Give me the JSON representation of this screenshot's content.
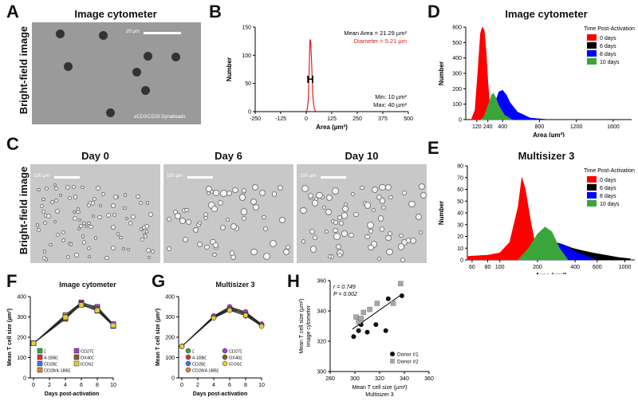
{
  "panels": {
    "a": "A",
    "b": "B",
    "c": "C",
    "d": "D",
    "e": "E",
    "f": "F",
    "g": "G",
    "h": "H"
  },
  "panel_a": {
    "title": "Image cytometer",
    "side_label": "Bright-field image",
    "scale": "20 µm",
    "caption": "αCD3/CD28 Dynabeads"
  },
  "panel_c": {
    "side_label": "Bright-field image",
    "days": [
      "Day 0",
      "Day 6",
      "Day 10"
    ],
    "scale": "100 µm"
  },
  "colors": {
    "red": "#ff0000",
    "black": "#000000",
    "blue": "#0000ff",
    "green": "#3aa63a"
  },
  "chart_data": [
    {
      "id": "B",
      "type": "line",
      "xlabel": "Area (µm²)",
      "ylabel": "Number",
      "xlim": [
        -250,
        500
      ],
      "ylim": [
        0,
        150
      ],
      "xticks": [
        -250,
        -125,
        0,
        125,
        250,
        375,
        500
      ],
      "yticks": [
        0,
        50,
        100,
        150
      ],
      "x": [
        0,
        5,
        10,
        13,
        16,
        18,
        20,
        22,
        24,
        26,
        28,
        30,
        32,
        35,
        38,
        42,
        46,
        50
      ],
      "y": [
        0,
        4,
        20,
        55,
        100,
        125,
        128,
        122,
        105,
        90,
        70,
        50,
        30,
        18,
        8,
        3,
        1,
        0
      ],
      "annotations": {
        "mean_area": "Mean Area = 21.29 µm²",
        "diameter": "Diameter = 5.21 µm",
        "min": "Min: 10 µm²",
        "max": "Max: 40 µm²",
        "marker": "H"
      }
    },
    {
      "id": "D",
      "type": "area",
      "title": "Image cytometer",
      "xlabel": "Area (µm²)",
      "ylabel": "Number",
      "xlim": [
        0,
        1800
      ],
      "ylim": [
        0,
        600
      ],
      "xticks": [
        120,
        240,
        400,
        800,
        1200,
        1600
      ],
      "yticks": [
        0,
        100,
        200,
        300,
        400,
        500,
        600
      ],
      "legend_title": "Time Post-Activation",
      "series": [
        {
          "name": "0 days",
          "color": "#ff0000",
          "x": [
            60,
            100,
            130,
            160,
            180,
            200,
            220,
            240,
            260,
            280
          ],
          "y": [
            0,
            60,
            300,
            560,
            600,
            580,
            450,
            250,
            90,
            10
          ]
        },
        {
          "name": "6 days",
          "color": "#000000",
          "x": [
            150,
            220,
            280,
            340,
            380,
            420,
            480,
            560,
            700,
            900
          ],
          "y": [
            0,
            10,
            60,
            110,
            140,
            120,
            80,
            40,
            10,
            0
          ]
        },
        {
          "name": "8 days",
          "color": "#0000ff",
          "x": [
            220,
            280,
            320,
            360,
            400,
            440,
            480,
            560,
            700,
            850
          ],
          "y": [
            0,
            40,
            110,
            180,
            190,
            160,
            110,
            50,
            10,
            0
          ]
        },
        {
          "name": "10 days",
          "color": "#3aa63a",
          "x": [
            160,
            200,
            240,
            280,
            300,
            320,
            360,
            420,
            500
          ],
          "y": [
            0,
            20,
            90,
            160,
            170,
            150,
            90,
            30,
            0
          ]
        }
      ]
    },
    {
      "id": "E",
      "type": "area",
      "title": "Multisizer 3",
      "xlabel": "Area (µm²)",
      "ylabel": "Number",
      "xscale": "log",
      "xlim": [
        55,
        1200
      ],
      "ylim": [
        0,
        80
      ],
      "xticks": [
        60,
        80,
        100,
        200,
        400,
        600,
        1000
      ],
      "yticks": [
        0,
        10,
        20,
        30,
        40,
        50,
        60,
        70,
        80
      ],
      "legend_title": "Time Post-Activation",
      "series": [
        {
          "name": "0 days",
          "color": "#ff0000",
          "x": [
            55,
            80,
            100,
            120,
            140,
            150,
            160,
            175,
            190,
            210,
            240
          ],
          "y": [
            3,
            4,
            6,
            15,
            45,
            70,
            60,
            35,
            15,
            5,
            0
          ]
        },
        {
          "name": "6 days",
          "color": "#000000",
          "x": [
            150,
            200,
            260,
            320,
            380,
            450,
            550,
            700,
            900,
            1100
          ],
          "y": [
            0,
            10,
            16,
            13,
            10,
            8,
            6,
            4,
            2,
            1
          ]
        },
        {
          "name": "8 days",
          "color": "#0000ff",
          "x": [
            160,
            200,
            250,
            300,
            350,
            400,
            500,
            600
          ],
          "y": [
            0,
            6,
            12,
            14,
            11,
            7,
            3,
            0
          ]
        },
        {
          "name": "10 days",
          "color": "#3aa63a",
          "x": [
            140,
            170,
            200,
            230,
            260,
            300,
            350
          ],
          "y": [
            0,
            10,
            22,
            28,
            24,
            10,
            0
          ]
        }
      ]
    },
    {
      "id": "F",
      "type": "line",
      "title": "Image cytometer",
      "xlabel": "Days post-activation",
      "ylabel": "Mean T cell size (µm²)",
      "xlim": [
        0,
        10
      ],
      "ylim": [
        0,
        400
      ],
      "xticks": [
        0,
        2,
        4,
        6,
        8,
        10
      ],
      "yticks": [
        0,
        100,
        200,
        300,
        400
      ],
      "x": [
        0,
        4,
        6,
        8,
        10
      ],
      "series": [
        {
          "name": "ζ",
          "color": "#3aa63a",
          "values": [
            170,
            295,
            360,
            330,
            255
          ]
        },
        {
          "name": "4-1BBζ",
          "color": "#e03030",
          "values": [
            170,
            300,
            365,
            335,
            258
          ]
        },
        {
          "name": "CD28ζ",
          "color": "#3a7ae0",
          "values": [
            170,
            305,
            370,
            340,
            260
          ]
        },
        {
          "name": "CD28/4-1BBζ",
          "color": "#e0803a",
          "values": [
            170,
            310,
            372,
            345,
            262
          ]
        },
        {
          "name": "CD27ζ",
          "color": "#a040d0",
          "values": [
            170,
            300,
            368,
            350,
            265
          ]
        },
        {
          "name": "OX40ζ",
          "color": "#8a5a20",
          "values": [
            170,
            290,
            362,
            338,
            256
          ]
        },
        {
          "name": "ICOSζ",
          "color": "#e0d040",
          "values": [
            170,
            298,
            358,
            332,
            258
          ]
        }
      ]
    },
    {
      "id": "G",
      "type": "line",
      "title": "Multisizer 3",
      "xlabel": "Days post-activation",
      "ylabel": "Mean T cell size (µm²)",
      "xlim": [
        0,
        10
      ],
      "ylim": [
        0,
        400
      ],
      "xticks": [
        0,
        2,
        4,
        6,
        8,
        10
      ],
      "yticks": [
        0,
        100,
        200,
        300,
        400
      ],
      "x": [
        0,
        4,
        6,
        8,
        10
      ],
      "series": [
        {
          "name": "ζ",
          "color": "#3aa63a",
          "values": [
            155,
            295,
            335,
            305,
            255
          ]
        },
        {
          "name": "4-1BBζ",
          "color": "#e03030",
          "values": [
            155,
            300,
            345,
            315,
            260
          ]
        },
        {
          "name": "CD28ζ",
          "color": "#3a7ae0",
          "values": [
            155,
            302,
            348,
            320,
            262
          ]
        },
        {
          "name": "CD28/4-1BBζ",
          "color": "#e0803a",
          "values": [
            155,
            298,
            340,
            318,
            258
          ]
        },
        {
          "name": "CD27ζ",
          "color": "#a040d0",
          "values": [
            155,
            305,
            350,
            325,
            265
          ]
        },
        {
          "name": "OX40ζ",
          "color": "#8a5a20",
          "values": [
            155,
            296,
            338,
            312,
            257
          ]
        },
        {
          "name": "ICOSζ",
          "color": "#e0d040",
          "values": [
            155,
            294,
            332,
            308,
            254
          ]
        }
      ]
    },
    {
      "id": "H",
      "type": "scatter",
      "xlabel": "Mean T cell size (µm²)",
      "xlabel2": "Multisizer 3",
      "ylabel": "Mean T cell size (µm²)",
      "ylabel2": "Image cytometer",
      "xlim": [
        280,
        360
      ],
      "ylim": [
        300,
        360
      ],
      "xticks": [
        280,
        300,
        320,
        340,
        360
      ],
      "yticks": [
        300,
        320,
        340,
        360
      ],
      "r": "r = 0.749",
      "p": "P = 0.002",
      "fit": [
        [
          298,
          328
        ],
        [
          338,
          351
        ]
      ],
      "series": [
        {
          "name": "Donor #1",
          "marker": "circle",
          "color": "#111111",
          "x": [
            299,
            303,
            305,
            310,
            317,
            325,
            327,
            338
          ],
          "y": [
            323,
            327,
            331,
            326,
            331,
            327,
            348,
            350
          ]
        },
        {
          "name": "Donor #2",
          "marker": "square",
          "color": "#a8a8a8",
          "x": [
            301,
            303,
            305,
            307,
            312,
            318,
            331,
            337
          ],
          "y": [
            336,
            333,
            335,
            339,
            341,
            345,
            345,
            358
          ]
        }
      ]
    }
  ]
}
